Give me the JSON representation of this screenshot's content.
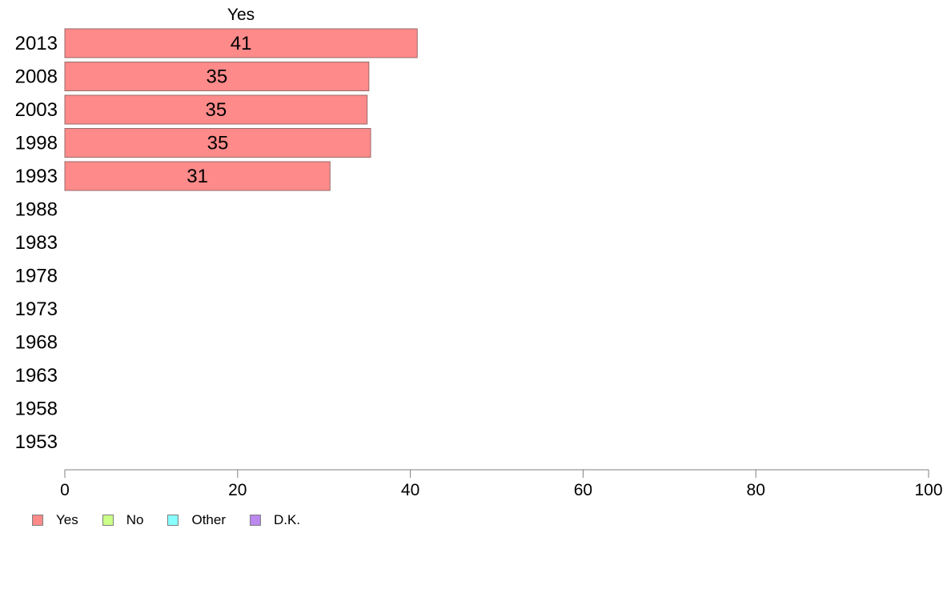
{
  "chart_data": {
    "type": "bar",
    "orientation": "horizontal",
    "title": "",
    "categories": [
      "2013",
      "2008",
      "2003",
      "1998",
      "1993",
      "1988",
      "1983",
      "1978",
      "1973",
      "1968",
      "1963",
      "1958",
      "1953"
    ],
    "series": [
      {
        "name": "Yes",
        "values": [
          40.8,
          35.2,
          35.0,
          35.4,
          30.7,
          null,
          null,
          null,
          null,
          null,
          null,
          null,
          null
        ],
        "labels": [
          "41",
          "35",
          "35",
          "35",
          "31",
          "",
          "",
          "",
          "",
          "",
          "",
          "",
          ""
        ],
        "color": "#ff8a8a"
      }
    ],
    "column_header": "Yes",
    "xlim": [
      0,
      100
    ],
    "xticks": [
      0,
      20,
      40,
      60,
      80,
      100
    ],
    "xtick_labels": [
      "0",
      "20",
      "40",
      "60",
      "80",
      "100"
    ],
    "xlabel": "",
    "ylabel": "",
    "grid": false,
    "legend": {
      "position": "bottom-left",
      "items": [
        {
          "label": "Yes",
          "color": "#ff8a8a"
        },
        {
          "label": "No",
          "color": "#ccff88"
        },
        {
          "label": "Other",
          "color": "#88ffff"
        },
        {
          "label": "D.K.",
          "color": "#bb88ee"
        }
      ]
    }
  }
}
